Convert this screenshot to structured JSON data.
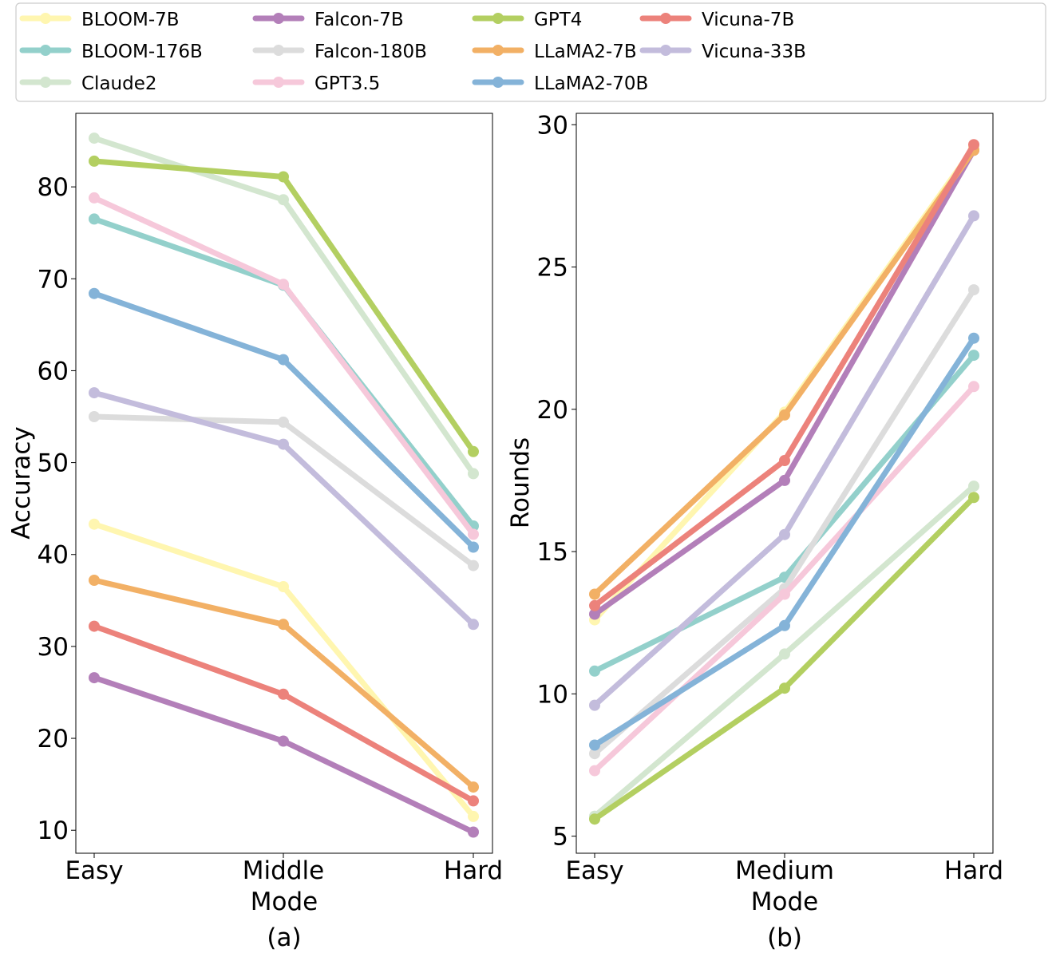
{
  "figure": {
    "legend": [
      {
        "name": "BLOOM-7B",
        "color": "#fff6b0"
      },
      {
        "name": "BLOOM-176B",
        "color": "#93d0cb"
      },
      {
        "name": "Claude2",
        "color": "#d3e6cf"
      },
      {
        "name": "Falcon-7B",
        "color": "#b37fb9"
      },
      {
        "name": "Falcon-180B",
        "color": "#dcdcdc"
      },
      {
        "name": "GPT3.5",
        "color": "#f6c8da"
      },
      {
        "name": "GPT4",
        "color": "#b3cf61"
      },
      {
        "name": "LLaMA2-7B",
        "color": "#f2b065"
      },
      {
        "name": "LLaMA2-70B",
        "color": "#84b3d8"
      },
      {
        "name": "Vicuna-7B",
        "color": "#ec827b"
      },
      {
        "name": "Vicuna-33B",
        "color": "#c3bcdc"
      }
    ]
  },
  "chart_data": [
    {
      "type": "line",
      "caption": "(a)",
      "xlabel": "Mode",
      "ylabel": "Accuracy",
      "categories": [
        "Easy",
        "Middle",
        "Hard"
      ],
      "ylim": [
        7.5,
        88
      ],
      "yticks": [
        10,
        20,
        30,
        40,
        50,
        60,
        70,
        80
      ],
      "series": [
        {
          "name": "BLOOM-7B",
          "color": "#fff6b0",
          "values": [
            43.3,
            36.5,
            11.5
          ]
        },
        {
          "name": "BLOOM-176B",
          "color": "#93d0cb",
          "values": [
            76.5,
            69.3,
            43.1
          ]
        },
        {
          "name": "Claude2",
          "color": "#d3e6cf",
          "values": [
            85.3,
            78.6,
            48.8
          ]
        },
        {
          "name": "Falcon-7B",
          "color": "#b37fb9",
          "values": [
            26.6,
            19.7,
            9.8
          ]
        },
        {
          "name": "Falcon-180B",
          "color": "#dcdcdc",
          "values": [
            55.0,
            54.4,
            38.8
          ]
        },
        {
          "name": "GPT3.5",
          "color": "#f6c8da",
          "values": [
            78.8,
            69.4,
            42.2
          ]
        },
        {
          "name": "GPT4",
          "color": "#b3cf61",
          "values": [
            82.8,
            81.1,
            51.2
          ]
        },
        {
          "name": "LLaMA2-7B",
          "color": "#f2b065",
          "values": [
            37.2,
            32.4,
            14.7
          ]
        },
        {
          "name": "LLaMA2-70B",
          "color": "#84b3d8",
          "values": [
            68.4,
            61.2,
            40.8
          ]
        },
        {
          "name": "Vicuna-7B",
          "color": "#ec827b",
          "values": [
            32.2,
            24.8,
            13.2
          ]
        },
        {
          "name": "Vicuna-33B",
          "color": "#c3bcdc",
          "values": [
            57.6,
            52.0,
            32.4
          ]
        }
      ]
    },
    {
      "type": "line",
      "caption": "(b)",
      "xlabel": "Mode",
      "ylabel": "Rounds",
      "categories": [
        "Easy",
        "Medium",
        "Hard"
      ],
      "ylim": [
        4.4,
        30.4
      ],
      "yticks": [
        5,
        10,
        15,
        20,
        25,
        30
      ],
      "series": [
        {
          "name": "BLOOM-7B",
          "color": "#fff6b0",
          "values": [
            12.6,
            19.9,
            29.2
          ]
        },
        {
          "name": "BLOOM-176B",
          "color": "#93d0cb",
          "values": [
            10.8,
            14.1,
            21.9
          ]
        },
        {
          "name": "Claude2",
          "color": "#d3e6cf",
          "values": [
            5.7,
            11.4,
            17.3
          ]
        },
        {
          "name": "Falcon-7B",
          "color": "#b37fb9",
          "values": [
            12.8,
            17.5,
            29.1
          ]
        },
        {
          "name": "Falcon-180B",
          "color": "#dcdcdc",
          "values": [
            7.9,
            13.7,
            24.2
          ]
        },
        {
          "name": "GPT3.5",
          "color": "#f6c8da",
          "values": [
            7.3,
            13.5,
            20.8
          ]
        },
        {
          "name": "GPT4",
          "color": "#b3cf61",
          "values": [
            5.6,
            10.2,
            16.9
          ]
        },
        {
          "name": "LLaMA2-7B",
          "color": "#f2b065",
          "values": [
            13.5,
            19.8,
            29.1
          ]
        },
        {
          "name": "LLaMA2-70B",
          "color": "#84b3d8",
          "values": [
            8.2,
            12.4,
            22.5
          ]
        },
        {
          "name": "Vicuna-7B",
          "color": "#ec827b",
          "values": [
            13.1,
            18.2,
            29.3
          ]
        },
        {
          "name": "Vicuna-33B",
          "color": "#c3bcdc",
          "values": [
            9.6,
            15.6,
            26.8
          ]
        }
      ]
    }
  ]
}
